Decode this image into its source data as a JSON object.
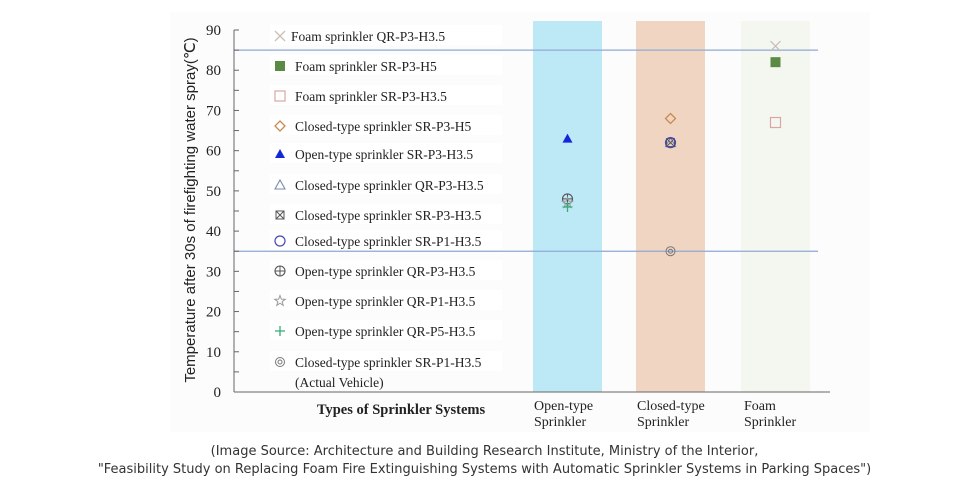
{
  "chart_data": {
    "type": "scatter",
    "title": "",
    "xlabel": "Types of Sprinkler Systems",
    "ylabel": "Temperature after 30s of firefighting water spray(℃)",
    "ylim": [
      0,
      90
    ],
    "yticks": [
      0,
      10,
      20,
      30,
      40,
      50,
      60,
      70,
      80,
      90
    ],
    "categories": [
      {
        "key": "open",
        "label_line1": "Open-type",
        "label_line2": "Sprinkler",
        "band_color": "#bde9f7"
      },
      {
        "key": "closed",
        "label_line1": "Closed-type",
        "label_line2": "Sprinkler",
        "band_color": "#f0d5c3"
      },
      {
        "key": "foam",
        "label_line1": "Foam",
        "label_line2": "Sprinkler",
        "band_color": "#f4f7f0"
      }
    ],
    "reference_lines": [
      {
        "value": 85,
        "color": "#8fa9d4"
      },
      {
        "value": 35,
        "color": "#8fa9d4"
      }
    ],
    "grid": false,
    "legend_position": "left-inside",
    "series": [
      {
        "name": "Foam sprinkler QR-P3-H3.5",
        "category": "foam",
        "value": 86,
        "marker": "x",
        "color": "#c9bfb7"
      },
      {
        "name": "Foam sprinkler SR-P3-H5",
        "category": "foam",
        "value": 82,
        "marker": "square-filled",
        "color": "#5a8a44"
      },
      {
        "name": "Foam sprinkler SR-P3-H3.5",
        "category": "foam",
        "value": 67,
        "marker": "square-open",
        "color": "#d8a8a0"
      },
      {
        "name": "Closed-type sprinkler SR-P3-H5",
        "category": "closed",
        "value": 68,
        "marker": "diamond-open",
        "color": "#c98a50"
      },
      {
        "name": "Open-type sprinkler SR-P3-H3.5",
        "category": "open",
        "value": 63,
        "marker": "triangle-filled",
        "color": "#1428d8"
      },
      {
        "name": "Closed-type sprinkler QR-P3-H3.5",
        "category": "closed",
        "value": 62,
        "marker": "triangle-open",
        "color": "#7a8aa8"
      },
      {
        "name": "Closed-type sprinkler SR-P3-H3.5",
        "category": "closed",
        "value": 62,
        "marker": "square-x",
        "color": "#555555"
      },
      {
        "name": "Closed-type sprinkler SR-P1-H3.5",
        "category": "closed",
        "value": 62,
        "marker": "circle-open",
        "color": "#4848b0"
      },
      {
        "name": "Open-type sprinkler QR-P3-H3.5",
        "category": "open",
        "value": 48,
        "marker": "circle-plus",
        "color": "#555555"
      },
      {
        "name": "Open-type sprinkler QR-P1-H3.5",
        "category": "open",
        "value": 47,
        "marker": "star-open",
        "color": "#9a9a9a"
      },
      {
        "name": "Open-type sprinkler QR-P5-H3.5",
        "category": "open",
        "value": 46,
        "marker": "plus",
        "color": "#3aaa78"
      },
      {
        "name": "Closed-type sprinkler SR-P1-H3.5",
        "name_line2": "(Actual Vehicle)",
        "category": "closed",
        "value": 35,
        "marker": "bullseye",
        "color": "#777777"
      }
    ]
  },
  "caption": {
    "line1": "(Image Source: Architecture and Building Research Institute, Ministry of the Interior,",
    "line2": "\"Feasibility Study on Replacing Foam Fire Extinguishing Systems with Automatic Sprinkler Systems in Parking Spaces\")"
  }
}
